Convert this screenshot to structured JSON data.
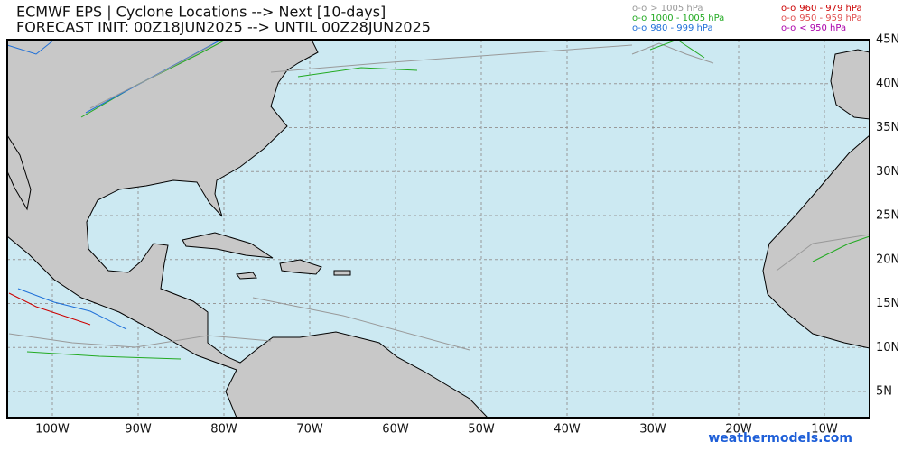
{
  "header": {
    "title": "ECMWF EPS | Cyclone Locations --> Next [10-days]",
    "subtitle": "FORECAST INIT: 00Z18JUN2025 --> UNTIL 00Z28JUN2025"
  },
  "legend": [
    {
      "marker": "o-o",
      "label": "> 1005 hPa",
      "color": "#999999"
    },
    {
      "marker": "o-o",
      "label": "1000 - 1005 hPa",
      "color": "#22aa22"
    },
    {
      "marker": "o-o",
      "label": "980 - 999 hPa",
      "color": "#1e6fd8"
    },
    {
      "marker": "o-o",
      "label": "960 - 979 hPa",
      "color": "#cc0000"
    },
    {
      "marker": "o-o",
      "label": "950 - 959 hPa",
      "color": "#e05050"
    },
    {
      "marker": "o-o",
      "label": "< 950 hPa",
      "color": "#aa00aa"
    }
  ],
  "map": {
    "lat_labels": [
      "45N",
      "40N",
      "35N",
      "30N",
      "25N",
      "20N",
      "15N",
      "10N",
      "5N"
    ],
    "lon_labels": [
      "100W",
      "90W",
      "80W",
      "70W",
      "60W",
      "50W",
      "40W",
      "30W",
      "20W",
      "10W"
    ]
  },
  "credit": "weathermodels.com"
}
